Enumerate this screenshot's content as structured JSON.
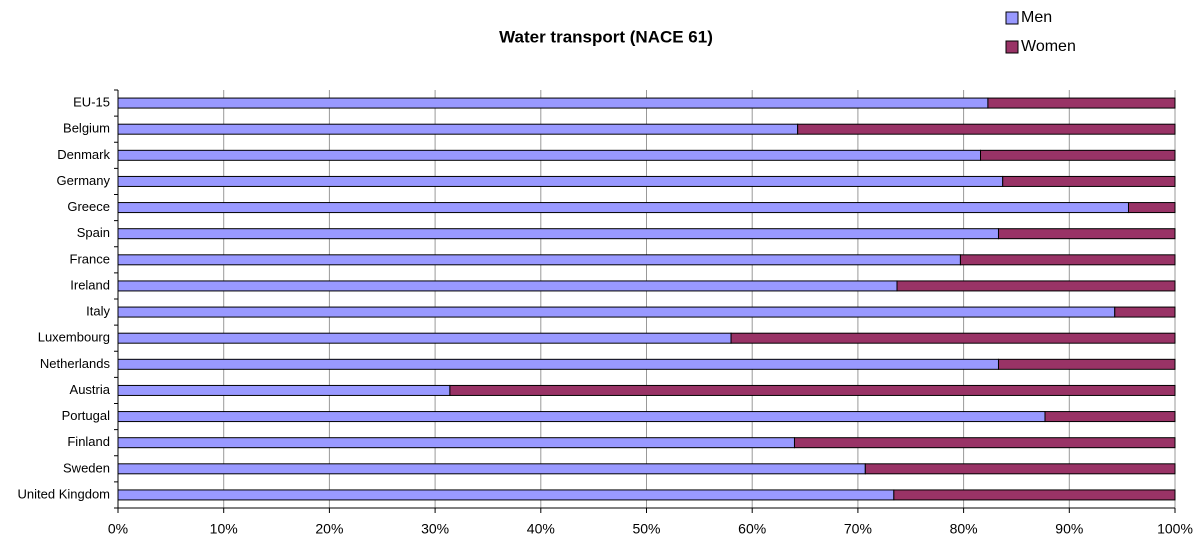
{
  "chart_data": {
    "type": "stacked-barh",
    "title": "Water transport (NACE 61)",
    "categories": [
      "EU-15",
      "Belgium",
      "Denmark",
      "Germany",
      "Greece",
      "Spain",
      "France",
      "Ireland",
      "Italy",
      "Luxembourg",
      "Netherlands",
      "Austria",
      "Portugal",
      "Finland",
      "Sweden",
      "United Kingdom"
    ],
    "series": [
      {
        "name": "Men",
        "color": "#9999ff",
        "values": [
          82.3,
          64.3,
          81.6,
          83.7,
          95.6,
          83.3,
          79.7,
          73.7,
          94.3,
          58.0,
          83.3,
          31.4,
          87.7,
          64.0,
          70.7,
          73.4
        ]
      },
      {
        "name": "Women",
        "color": "#993366",
        "values": [
          17.7,
          35.7,
          18.4,
          16.3,
          4.4,
          16.7,
          20.3,
          26.3,
          5.7,
          42.0,
          16.7,
          68.6,
          12.3,
          36.0,
          29.3,
          26.6
        ]
      }
    ],
    "xlim": [
      0,
      100
    ],
    "xticks": [
      {
        "value": 0,
        "label": "0%"
      },
      {
        "value": 10,
        "label": "10%"
      },
      {
        "value": 20,
        "label": "20%"
      },
      {
        "value": 30,
        "label": "30%"
      },
      {
        "value": 40,
        "label": "40%"
      },
      {
        "value": 50,
        "label": "50%"
      },
      {
        "value": 60,
        "label": "60%"
      },
      {
        "value": 70,
        "label": "70%"
      },
      {
        "value": 80,
        "label": "80%"
      },
      {
        "value": 90,
        "label": "90%"
      },
      {
        "value": 100,
        "label": "100%"
      }
    ],
    "grid": true,
    "legend": "top-right"
  }
}
